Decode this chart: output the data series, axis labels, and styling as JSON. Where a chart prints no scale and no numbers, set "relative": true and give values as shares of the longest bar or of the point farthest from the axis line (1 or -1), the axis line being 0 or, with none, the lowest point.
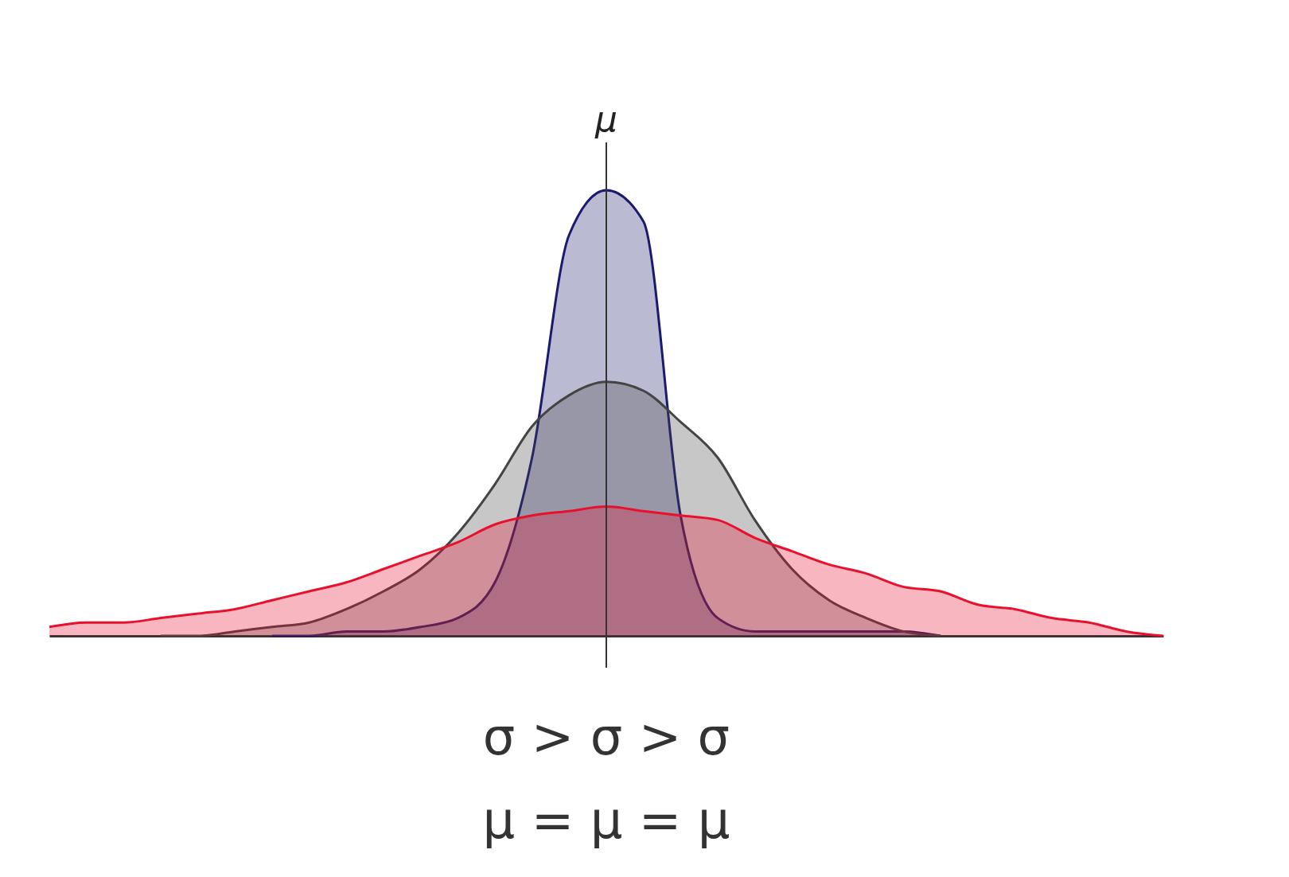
{
  "chart_data": {
    "type": "area",
    "relative": true,
    "ylabel": "μ",
    "tick_labels": false,
    "grid": false,
    "categories": [
      null,
      null,
      null,
      null,
      null,
      null,
      null,
      null,
      null,
      null,
      null,
      null,
      null,
      null,
      null,
      null,
      null,
      null,
      null,
      null,
      null,
      null,
      null,
      null,
      null,
      null,
      null,
      null,
      null,
      null,
      null
    ],
    "series": [
      {
        "color": "#1a1a6e",
        "values": [
          null,
          null,
          null,
          null,
          null,
          null,
          0,
          0,
          0.01,
          0.01,
          0.02,
          0.04,
          0.12,
          0.4,
          0.9,
          1,
          0.93,
          0.27,
          0.04,
          0.01,
          0.01,
          0.01,
          0.01,
          0.01,
          0,
          null,
          null,
          null,
          null,
          null,
          null
        ]
      },
      {
        "color": "#444444",
        "values": [
          null,
          null,
          null,
          0,
          0,
          0.01,
          0.02,
          0.03,
          0.06,
          0.1,
          0.15,
          0.23,
          0.34,
          0.47,
          0.54,
          0.57,
          0.55,
          0.48,
          0.4,
          0.26,
          0.15,
          0.08,
          0.04,
          0.01,
          0,
          null,
          null,
          null,
          null,
          null,
          null
        ]
      },
      {
        "color": "#e8112d",
        "values": [
          0.02,
          0.03,
          0.03,
          0.04,
          0.05,
          0.06,
          0.08,
          0.1,
          0.12,
          0.15,
          0.18,
          0.21,
          0.25,
          0.27,
          0.28,
          0.29,
          0.28,
          0.27,
          0.26,
          0.22,
          0.19,
          0.16,
          0.14,
          0.11,
          0.1,
          0.07,
          0.06,
          0.04,
          0.03,
          0.01,
          0
        ]
      }
    ],
    "annotations": [
      "σ > σ > σ",
      "μ = μ = μ"
    ]
  }
}
